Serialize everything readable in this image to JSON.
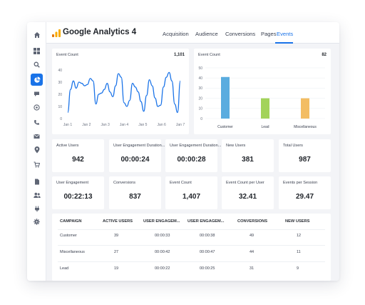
{
  "app": {
    "title": "Google Analytics 4",
    "accent": "#1a73e8",
    "logo_colors": [
      "#f9ab00",
      "#e37400"
    ]
  },
  "sidebar": {
    "icons": [
      "home-icon",
      "grid-icon",
      "search-icon",
      "pie-chart-icon",
      "chat-icon",
      "at-sign-icon",
      "phone-icon",
      "mail-icon",
      "location-pin-icon",
      "cart-icon",
      "document-icon",
      "users-icon",
      "plug-icon",
      "gear-icon"
    ],
    "active": "pie-chart-icon"
  },
  "tabs": [
    {
      "label": "Acquisition",
      "active": false
    },
    {
      "label": "Audience",
      "active": false
    },
    {
      "label": "Conversions",
      "active": false
    },
    {
      "label": "Pages",
      "active": false
    },
    {
      "label": "Events",
      "active": true
    }
  ],
  "line_card": {
    "title": "Event Count",
    "value": "1,101"
  },
  "bar_card": {
    "title": "Event Count",
    "value": "82"
  },
  "metrics": [
    {
      "label": "Active Users",
      "value": "942"
    },
    {
      "label": "User Engagement Duration...",
      "value": "00:00:24"
    },
    {
      "label": "User Engagement Duration...",
      "value": "00:00:28"
    },
    {
      "label": "New Users",
      "value": "381"
    },
    {
      "label": "Total Users",
      "value": "987"
    },
    {
      "label": "User Engagement",
      "value": "00:22:13"
    },
    {
      "label": "Conversions",
      "value": "837"
    },
    {
      "label": "Event Count",
      "value": "1,407"
    },
    {
      "label": "Event Count per User",
      "value": "32.41"
    },
    {
      "label": "Events per Session",
      "value": "29.47"
    }
  ],
  "table": {
    "headers": [
      "CAMPAIGN",
      "ACTIVE USERS",
      "USER ENGAGEM...",
      "USER ENGAGEM...",
      "CONVERSIONS",
      "NEW USERS"
    ],
    "rows": [
      [
        "Customer",
        "39",
        "00:00:33",
        "00:00:38",
        "49",
        "12"
      ],
      [
        "Miscellaneous",
        "27",
        "00:00:42",
        "00:00:47",
        "44",
        "11"
      ],
      [
        "Lead",
        "19",
        "00:00:22",
        "00:00:25",
        "31",
        "9"
      ]
    ]
  },
  "chart_data": [
    {
      "type": "line",
      "title": "Event Count",
      "x_tick_labels": [
        "Jan 1",
        "Jan 2",
        "Jan 3",
        "Jan 4",
        "Jan 5",
        "Jan 6",
        "Jan 7"
      ],
      "series": [
        {
          "color": "#1a73e8",
          "x": [
            0,
            0.15,
            0.3,
            0.45,
            0.6,
            0.75,
            0.9,
            1.05,
            1.2,
            1.35,
            1.5,
            1.65,
            1.8,
            1.95,
            2.1,
            2.25,
            2.4,
            2.55,
            2.7,
            2.85,
            3.0,
            3.15,
            3.3,
            3.45,
            3.6,
            3.75,
            3.9,
            4.05,
            4.2,
            4.35,
            4.5,
            4.65,
            4.8,
            4.95,
            5.1,
            5.25,
            5.4,
            5.55,
            5.7,
            5.85,
            6.0
          ],
          "y": [
            5,
            24,
            31,
            25,
            30,
            29,
            27,
            28,
            33,
            31,
            12,
            20,
            21,
            24,
            29,
            22,
            18,
            27,
            37,
            34,
            13,
            10,
            15,
            29,
            26,
            22,
            14,
            6,
            19,
            32,
            27,
            17,
            10,
            11,
            26,
            34,
            38,
            31,
            12,
            5,
            31
          ]
        }
      ],
      "ylim": [
        0,
        40
      ],
      "y_ticks": [
        0,
        10,
        20,
        30,
        40
      ],
      "grid": false
    },
    {
      "type": "bar",
      "title": "Event Count",
      "categories": [
        "Customer",
        "Lead",
        "Miscellaneous"
      ],
      "values": [
        41,
        20,
        20
      ],
      "colors": [
        "#5aacdf",
        "#a3d35a",
        "#f3bd63"
      ],
      "ylim": [
        0,
        50
      ],
      "y_ticks": [
        0,
        10,
        20,
        30,
        40,
        50
      ],
      "grid": true
    }
  ]
}
